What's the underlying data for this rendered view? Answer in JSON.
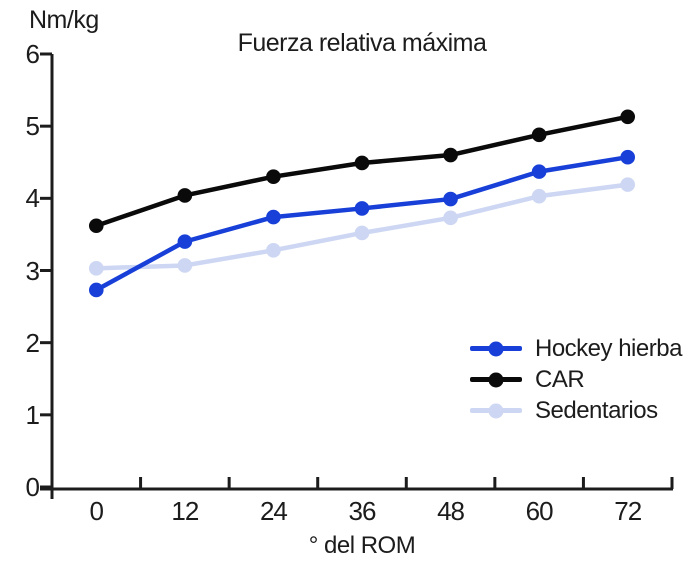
{
  "page": {
    "background": "#ffffff"
  },
  "colors": {
    "axis": "#1c1c1c",
    "text": "#1c1c1c"
  },
  "chart_data": {
    "type": "line",
    "title": "Fuerza relativa máxima",
    "y_unit_label": "Nm/kg",
    "xlabel": "° del ROM",
    "ylabel": "Nm/kg",
    "categories": [
      "0",
      "12",
      "24",
      "36",
      "48",
      "60",
      "72"
    ],
    "y_ticks": [
      0,
      1,
      2,
      3,
      4,
      5,
      6
    ],
    "ylim": [
      0,
      6
    ],
    "grid": false,
    "markers": true,
    "legend_position": "inside-right-middle",
    "series": [
      {
        "name": "Hockey hierba",
        "color": "#1840d8",
        "values": [
          2.73,
          3.4,
          3.74,
          3.86,
          3.99,
          4.37,
          4.57
        ]
      },
      {
        "name": "CAR",
        "color": "#0a0a0a",
        "values": [
          3.62,
          4.04,
          4.3,
          4.49,
          4.6,
          4.88,
          5.13
        ]
      },
      {
        "name": "Sedentarios",
        "color": "#cdd7f3",
        "values": [
          3.03,
          3.07,
          3.28,
          3.52,
          3.73,
          4.03,
          4.19
        ]
      }
    ],
    "legend": [
      {
        "label": "Hockey hierba",
        "color": "#1840d8"
      },
      {
        "label": "CAR",
        "color": "#0a0a0a"
      },
      {
        "label": "Sedentarios",
        "color": "#cdd7f3"
      }
    ]
  }
}
